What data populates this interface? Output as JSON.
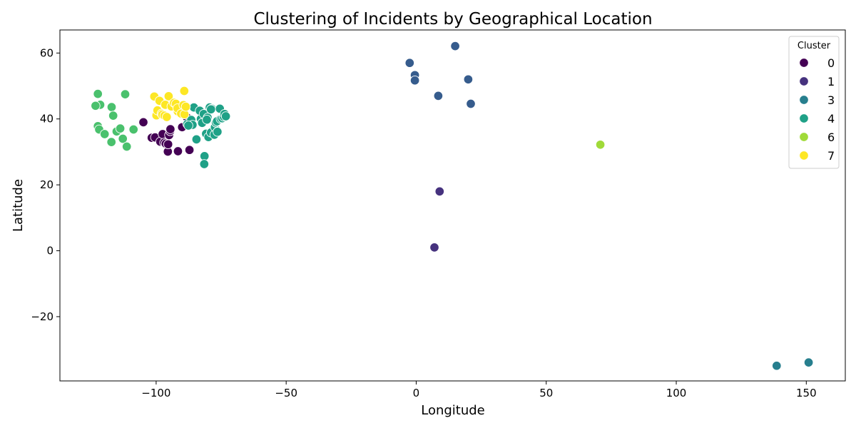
{
  "chart_data": {
    "type": "scatter",
    "title": "Clustering of Incidents by Geographical Location",
    "xlabel": "Longitude",
    "ylabel": "Latitude",
    "xlim": [
      -137,
      165
    ],
    "ylim": [
      -39.5,
      67
    ],
    "x_ticks": [
      -100,
      -50,
      0,
      50,
      100,
      150
    ],
    "y_ticks": [
      -20,
      0,
      20,
      40,
      60
    ],
    "x_tick_labels": [
      "−100",
      "−50",
      "0",
      "50",
      "100",
      "150"
    ],
    "y_tick_labels": [
      "−20",
      "0",
      "20",
      "40",
      "60"
    ],
    "grid": false,
    "legend": {
      "title": "Cluster",
      "placement": "top-right",
      "entries": [
        {
          "label": "0",
          "color": "#440154"
        },
        {
          "label": "1",
          "color": "#46327e"
        },
        {
          "label": "3",
          "color": "#277f8e"
        },
        {
          "label": "4",
          "color": "#1fa187"
        },
        {
          "label": "6",
          "color": "#a0da39"
        },
        {
          "label": "7",
          "color": "#fde725"
        }
      ]
    },
    "series": [
      {
        "cluster": "0",
        "color": "#440154",
        "points": [
          [
            -104.9,
            39
          ],
          [
            -101.7,
            34.3
          ],
          [
            -100.4,
            34.4
          ],
          [
            -98.4,
            33.1
          ],
          [
            -97.5,
            35.4
          ],
          [
            -96.9,
            32.8
          ],
          [
            -96.3,
            32.5
          ],
          [
            -95.5,
            30.1
          ],
          [
            -95.4,
            32.3
          ],
          [
            -95,
            35.1
          ],
          [
            -94.6,
            36.3
          ],
          [
            -94.5,
            36.9
          ],
          [
            -91.6,
            30.2
          ],
          [
            -90,
            37.5
          ],
          [
            -87.2,
            30.6
          ],
          [
            -88.2,
            40.5
          ]
        ]
      },
      {
        "cluster": "1",
        "color": "#46327e",
        "points": [
          [
            9,
            18
          ],
          [
            7,
            1
          ]
        ]
      },
      {
        "cluster": "2",
        "color": "#365c8d",
        "points": [
          [
            15,
            62.1
          ],
          [
            -2.5,
            57
          ],
          [
            -0.5,
            53.3
          ],
          [
            -0.5,
            51.7
          ],
          [
            20,
            52
          ],
          [
            8.5,
            47
          ],
          [
            21,
            44.6
          ]
        ]
      },
      {
        "cluster": "3",
        "color": "#277f8e",
        "points": [
          [
            138.6,
            -34.9
          ],
          [
            150.9,
            -33.9
          ]
        ]
      },
      {
        "cluster": "4",
        "color": "#1fa187",
        "points": [
          [
            -88,
            38.5
          ],
          [
            -86.5,
            39.7
          ],
          [
            -86,
            38.2
          ],
          [
            -85.5,
            43.5
          ],
          [
            -84.5,
            33.8
          ],
          [
            -83.2,
            42.5
          ],
          [
            -82.8,
            40
          ],
          [
            -82.3,
            38.8
          ],
          [
            -81.7,
            41.5
          ],
          [
            -81.4,
            28.7
          ],
          [
            -81.5,
            26.3
          ],
          [
            -80.8,
            35.5
          ],
          [
            -80.2,
            40.4
          ],
          [
            -79.9,
            34.5
          ],
          [
            -79.4,
            43.5
          ],
          [
            -78.9,
            35.9
          ],
          [
            -78.6,
            43.1
          ],
          [
            -77.6,
            35.2
          ],
          [
            -77.4,
            37.5
          ],
          [
            -77,
            38.9
          ],
          [
            -76.6,
            39.3
          ],
          [
            -76.4,
            36.1
          ],
          [
            -75.5,
            43.1
          ],
          [
            -75.2,
            40
          ],
          [
            -74.6,
            40.2
          ],
          [
            -74,
            40.7
          ],
          [
            -73.7,
            41.5
          ],
          [
            -73.2,
            40.8
          ],
          [
            -78.9,
            42.9
          ],
          [
            -80.5,
            39.8
          ],
          [
            -87.6,
            38
          ]
        ]
      },
      {
        "cluster": "5",
        "color": "#4ac16d",
        "points": [
          [
            -122.4,
            37.8
          ],
          [
            -122.4,
            47.6
          ],
          [
            -121.5,
            44.3
          ],
          [
            -123.3,
            44
          ],
          [
            -121.9,
            36.8
          ],
          [
            -119.8,
            35.4
          ],
          [
            -117.2,
            33
          ],
          [
            -117.1,
            43.6
          ],
          [
            -116.5,
            41
          ],
          [
            -115.2,
            36.2
          ],
          [
            -113.8,
            37.1
          ],
          [
            -112.8,
            34
          ],
          [
            -111.9,
            47.5
          ],
          [
            -111.3,
            31.6
          ],
          [
            -108.7,
            36.8
          ]
        ]
      },
      {
        "cluster": "6",
        "color": "#a0da39",
        "points": [
          [
            70.8,
            32.2
          ]
        ]
      },
      {
        "cluster": "7",
        "color": "#fde725",
        "points": [
          [
            -100.7,
            46.8
          ],
          [
            -99.9,
            41.1
          ],
          [
            -99.5,
            42.6
          ],
          [
            -98.7,
            45.5
          ],
          [
            -97.9,
            41.6
          ],
          [
            -97.6,
            41.3
          ],
          [
            -96.8,
            41
          ],
          [
            -96.5,
            44.3
          ],
          [
            -95.9,
            40.6
          ],
          [
            -95.2,
            46.9
          ],
          [
            -94.1,
            43.8
          ],
          [
            -93.1,
            44.9
          ],
          [
            -92.4,
            44.6
          ],
          [
            -91.7,
            42.3
          ],
          [
            -91.8,
            43.2
          ],
          [
            -90.4,
            41.6
          ],
          [
            -89.5,
            44.2
          ],
          [
            -89.2,
            48.5
          ],
          [
            -89.1,
            41.4
          ],
          [
            -88.6,
            43.7
          ]
        ]
      }
    ]
  }
}
